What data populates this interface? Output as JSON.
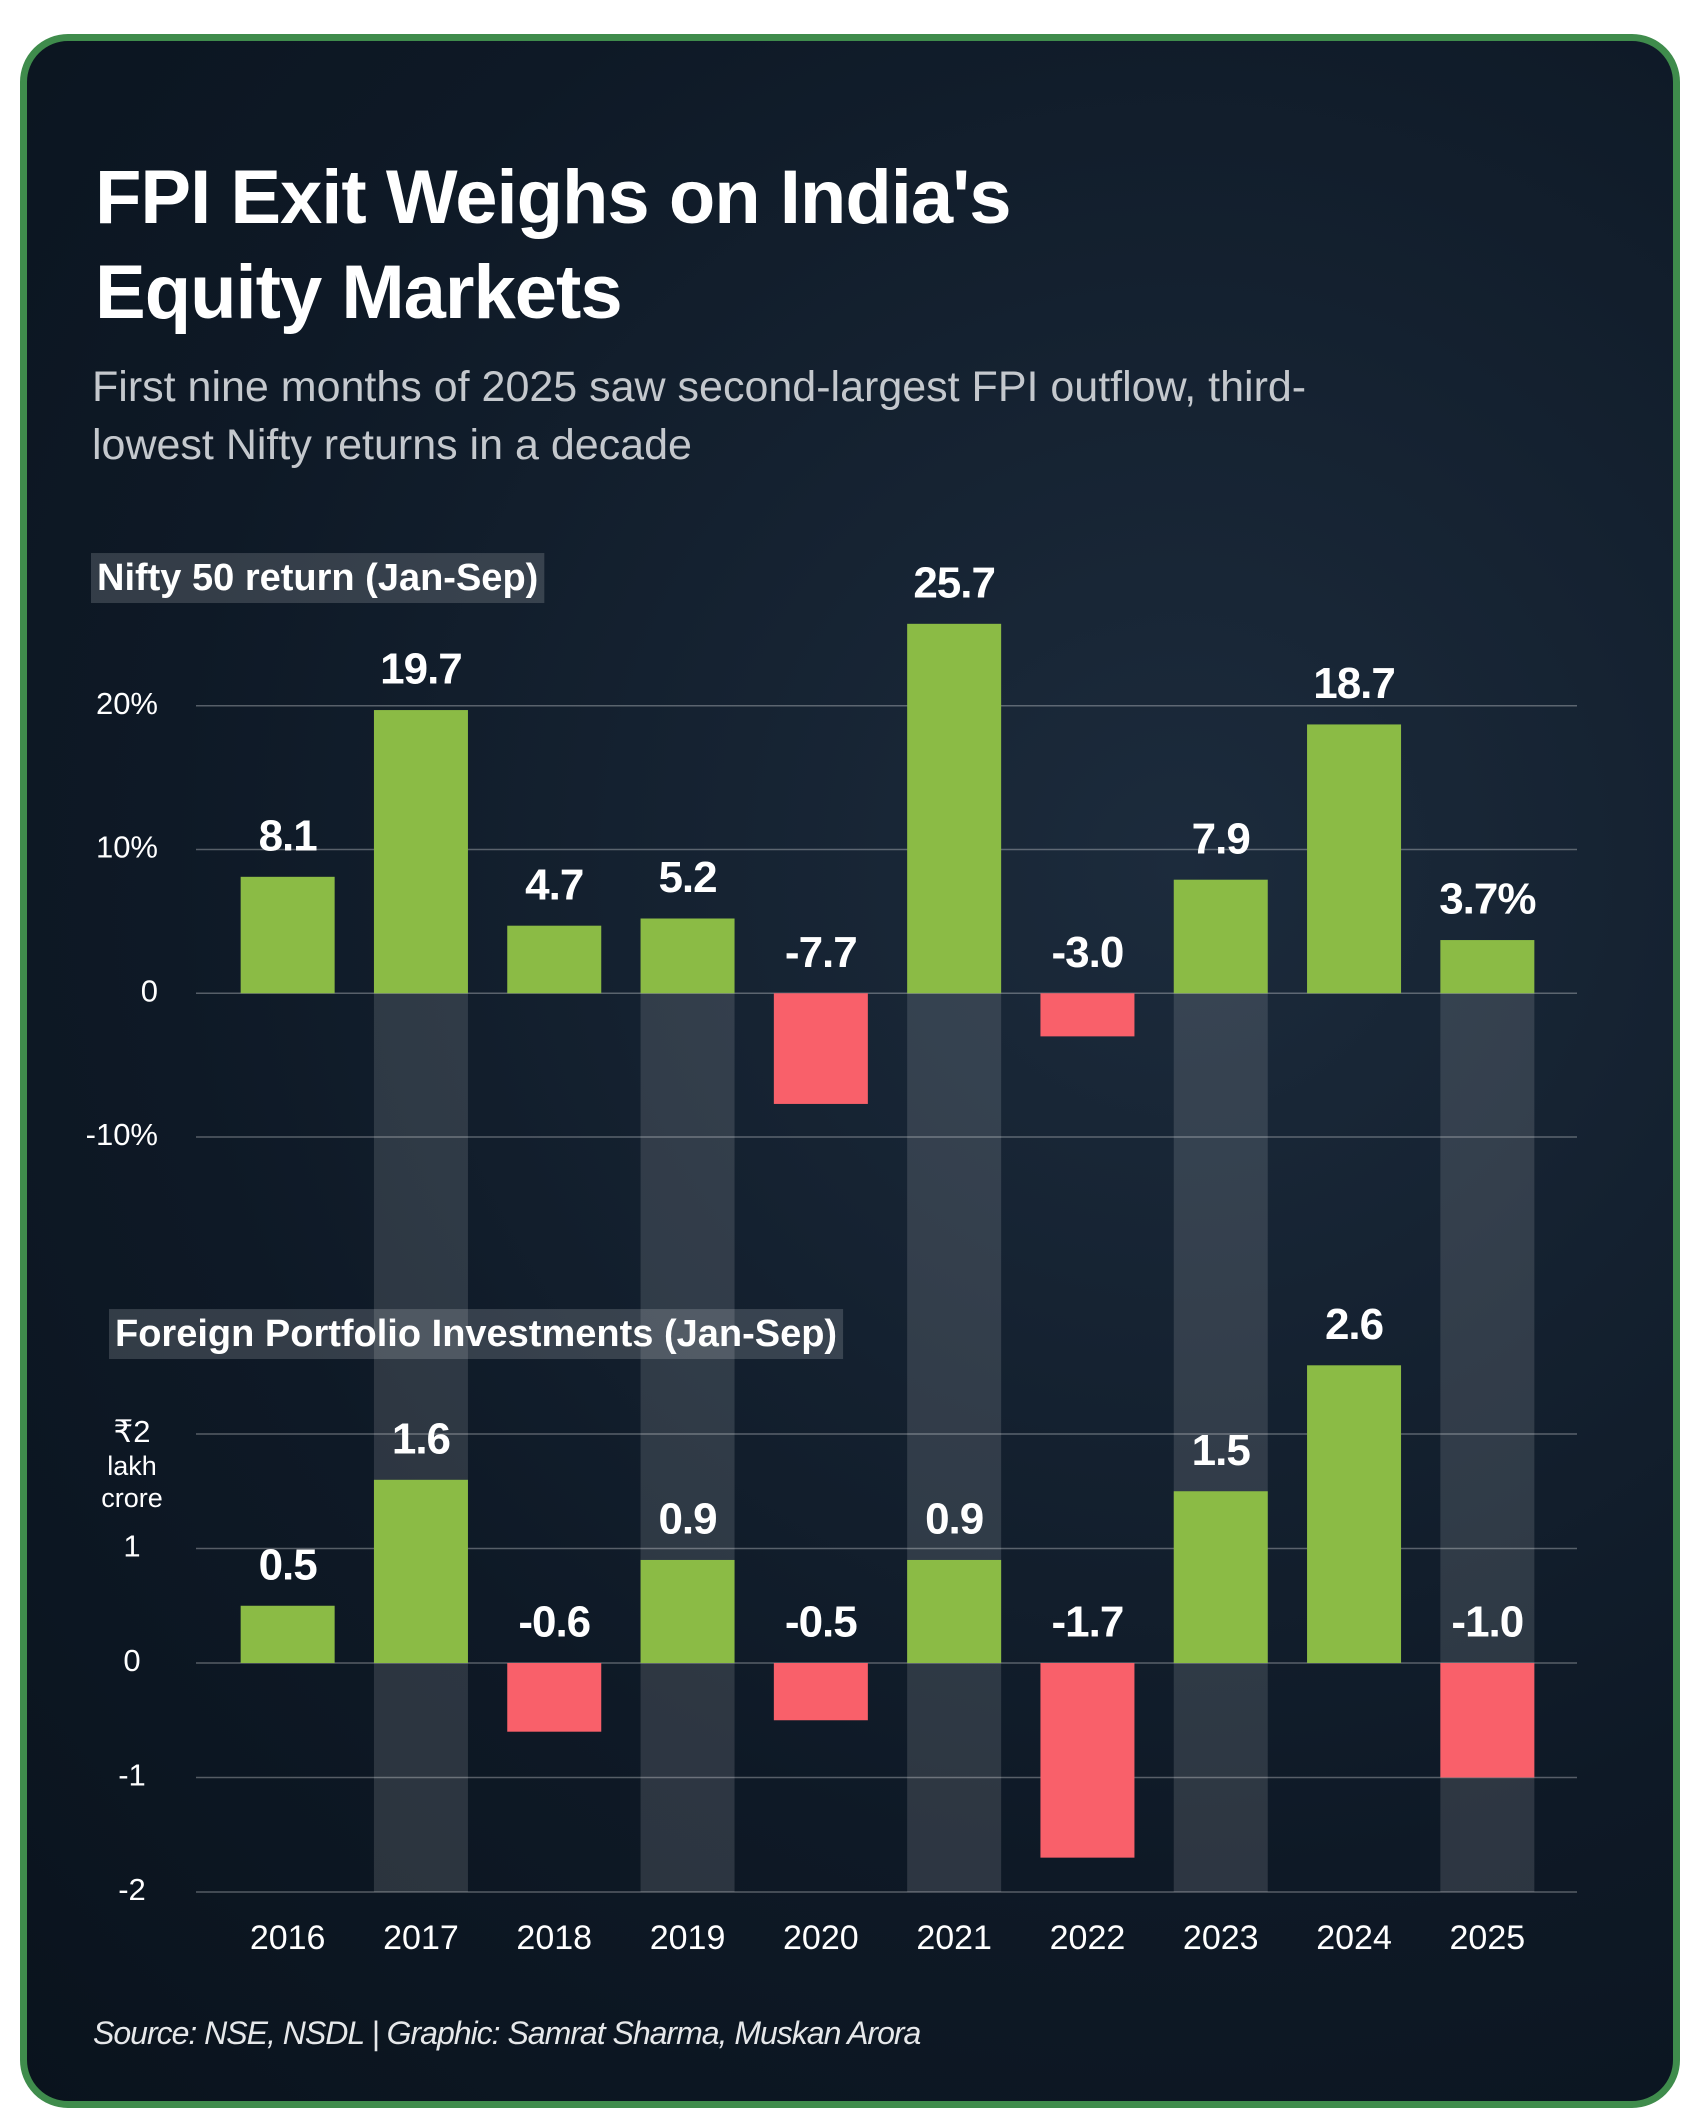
{
  "title": "FPI Exit Weighs on India's Equity Markets",
  "subtitle": "First nine months of 2025 saw second-largest FPI outflow, third-lowest Nifty returns in a decade",
  "source": "Source: NSE, NSDL | Graphic: Samrat Sharma, Muskan Arora",
  "chart_data": [
    {
      "type": "bar",
      "title": "Nifty 50 return (Jan-Sep)",
      "values": [
        8.1,
        19.7,
        4.7,
        5.2,
        -7.7,
        25.7,
        -3.0,
        7.9,
        18.7,
        3.7
      ],
      "value_labels": [
        "8.1",
        "19.7",
        "4.7",
        "5.2",
        "-7.7",
        "25.7",
        "-3.0",
        "7.9",
        "18.7",
        "3.7%"
      ],
      "positive_color": "#8bbb45",
      "negative_color": "#f9606a",
      "ylim": [
        -10,
        30
      ],
      "yticks": [
        {
          "value": -10,
          "label": "-10%"
        },
        0,
        {
          "value": 10,
          "label": "10%"
        },
        {
          "value": 20,
          "label": "20%"
        }
      ],
      "grid": true
    },
    {
      "type": "bar",
      "title": "Foreign Portfolio Investments (Jan-Sep)",
      "categories": [
        "2016",
        "2017",
        "2018",
        "2019",
        "2020",
        "2021",
        "2022",
        "2023",
        "2024",
        "2025"
      ],
      "values": [
        0.5,
        1.6,
        -0.6,
        0.9,
        -0.5,
        0.9,
        -1.7,
        1.5,
        2.6,
        -1.0
      ],
      "value_labels": [
        "0.5",
        "1.6",
        "-0.6",
        "0.9",
        "-0.5",
        "0.9",
        "-1.7",
        "1.5",
        "2.6",
        "-1.0"
      ],
      "positive_color": "#8bbb45",
      "negative_color": "#f9606a",
      "ylim": [
        -2,
        3
      ],
      "yticks": [
        -2,
        -1,
        0,
        1,
        {
          "value": 2,
          "label": "₹2"
        }
      ],
      "y_unit": [
        "lakh",
        "crore"
      ],
      "grid": true
    }
  ]
}
